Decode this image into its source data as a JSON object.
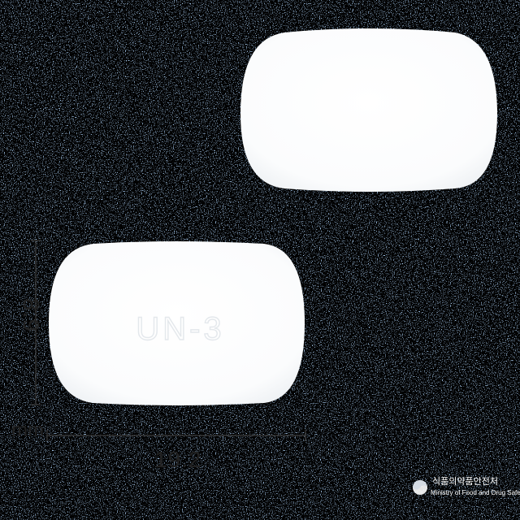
{
  "colors": {
    "background": "#a9cdf2",
    "tablet": "#ffffff",
    "ink": "#222222"
  },
  "tablet": {
    "imprint": "UN-3"
  },
  "dimensions": {
    "height_value": "8.9",
    "width_value": "19.2",
    "unit": "mm"
  },
  "watermark": {
    "title": "식품의약품안전처",
    "subtitle": "Ministry of Food and Drug Safety"
  }
}
